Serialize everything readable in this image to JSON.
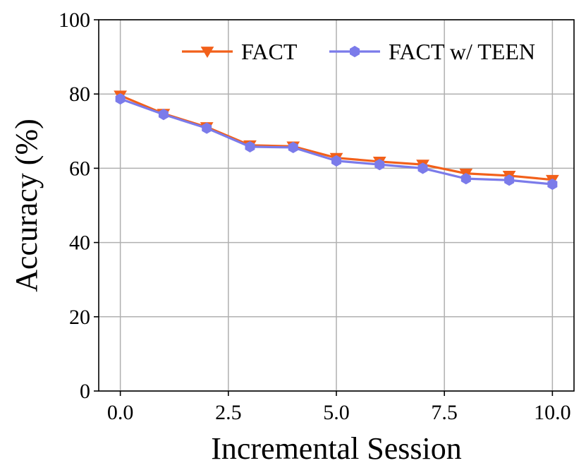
{
  "chart_data": {
    "type": "line",
    "title": "",
    "xlabel": "Incremental Session",
    "ylabel": "Accuracy (%)",
    "xlim": [
      -0.5,
      10.5
    ],
    "ylim": [
      0,
      100
    ],
    "x_ticks": [
      0.0,
      2.5,
      5.0,
      7.5,
      10.0
    ],
    "x_tick_labels": [
      "0.0",
      "2.5",
      "5.0",
      "7.5",
      "10.0"
    ],
    "y_ticks": [
      0,
      20,
      40,
      60,
      80,
      100
    ],
    "y_tick_labels": [
      "0",
      "20",
      "40",
      "60",
      "80",
      "100"
    ],
    "grid": true,
    "legend": "top-right",
    "x": [
      0,
      1,
      2,
      3,
      4,
      5,
      6,
      7,
      8,
      9,
      10
    ],
    "series": [
      {
        "name": "FACT",
        "color": "#F2601A",
        "marker": "triangle-down",
        "values": [
          79.6,
          74.7,
          71.1,
          66.2,
          65.9,
          62.8,
          61.8,
          61.0,
          58.6,
          58.0,
          56.9
        ]
      },
      {
        "name": "FACT w/ TEEN",
        "color": "#7B7BEA",
        "marker": "hexagon",
        "values": [
          78.7,
          74.5,
          70.8,
          65.8,
          65.6,
          62.0,
          61.0,
          60.0,
          57.2,
          56.8,
          55.7
        ]
      }
    ]
  }
}
